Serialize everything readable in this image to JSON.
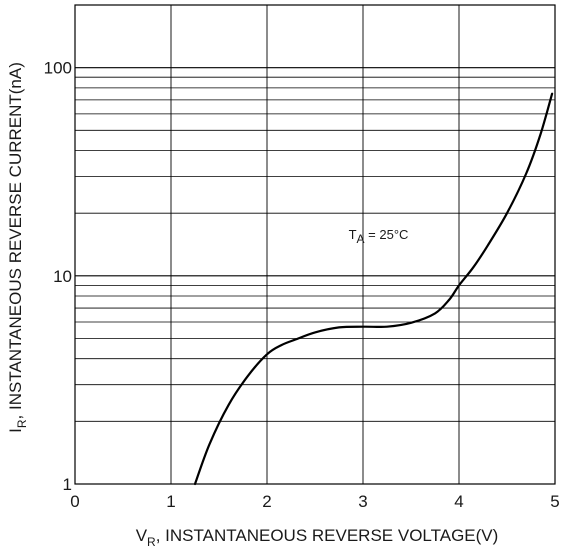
{
  "chart_data": {
    "type": "line",
    "xlabel": {
      "main": "V",
      "sub": "R",
      "rest": ", INSTANTANEOUS REVERSE VOLTAGE(V)"
    },
    "ylabel": {
      "main": "I",
      "sub": "R",
      "rest": ", INSTANTANEOUS REVERSE CURRENT(nA)"
    },
    "xlim": [
      0,
      5
    ],
    "ylim": [
      1,
      200
    ],
    "y_scale": "log",
    "x_ticks": [
      0,
      1,
      2,
      3,
      4,
      5
    ],
    "x_tick_labels": [
      "0",
      "1",
      "2",
      "3",
      "4",
      "5"
    ],
    "y_ticks": [
      1,
      10,
      100
    ],
    "y_tick_labels": [
      "1",
      "10",
      "100"
    ],
    "grid": true,
    "annotation": {
      "main": "T",
      "sub": "A",
      "rest": " = 25°C",
      "x": 2.85,
      "y": 15
    },
    "series": [
      {
        "color": "#000000",
        "x": [
          1.25,
          1.4,
          1.6,
          1.8,
          2.0,
          2.15,
          2.3,
          2.5,
          2.75,
          3.0,
          3.25,
          3.5,
          3.75,
          3.9,
          4.0,
          4.15,
          4.3,
          4.5,
          4.7,
          4.85,
          4.97
        ],
        "y": [
          1.0,
          1.55,
          2.4,
          3.3,
          4.2,
          4.65,
          4.95,
          5.35,
          5.65,
          5.7,
          5.7,
          5.95,
          6.6,
          7.7,
          9.0,
          11.0,
          14.0,
          20.0,
          31.0,
          48.0,
          75.0
        ]
      }
    ]
  }
}
